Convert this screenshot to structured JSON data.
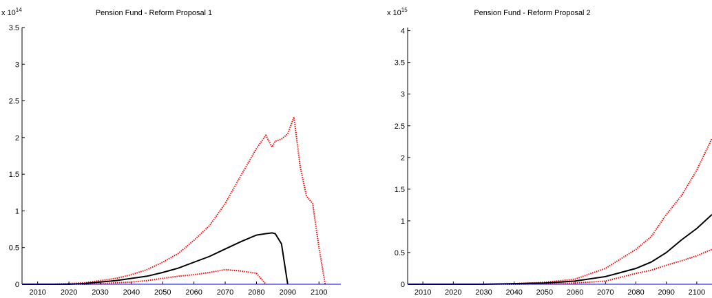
{
  "chart_data": [
    {
      "type": "line",
      "title": "Pension Fund - Reform Proposal 1",
      "y_scale_label": "x 10",
      "y_scale_exponent": "14",
      "x": [
        2005,
        2010,
        2015,
        2020,
        2025,
        2030,
        2035,
        2040,
        2045,
        2050,
        2055,
        2060,
        2065,
        2070,
        2075,
        2080,
        2083,
        2085,
        2086,
        2088,
        2090,
        2092,
        2094,
        2096,
        2098,
        2100,
        2102
      ],
      "xlim": [
        2005,
        2107
      ],
      "xticks": [
        2010,
        2020,
        2030,
        2040,
        2050,
        2060,
        2070,
        2080,
        2090,
        2100
      ],
      "ylim": [
        0,
        3.5
      ],
      "yticks": [
        0,
        0.5,
        1,
        1.5,
        2,
        2.5,
        3,
        3.5
      ],
      "series": [
        {
          "color": "#ff0000",
          "style": "dotted",
          "values": [
            0,
            0,
            0,
            0.01,
            0.02,
            0.05,
            0.08,
            0.13,
            0.2,
            0.3,
            0.42,
            0.6,
            0.8,
            1.1,
            1.48,
            1.85,
            2.03,
            1.87,
            1.95,
            1.98,
            2.05,
            2.28,
            1.6,
            1.2,
            1.1,
            0.5,
            0
          ]
        },
        {
          "color": "#ff0000",
          "style": "dotted",
          "values": [
            0,
            0,
            0,
            0,
            0,
            0.01,
            0.02,
            0.03,
            0.05,
            0.08,
            0.11,
            0.13,
            0.16,
            0.2,
            0.18,
            0.15,
            0,
            null,
            null,
            null,
            null,
            null,
            null,
            null,
            null,
            null,
            null
          ]
        },
        {
          "color": "#000000",
          "style": "solid",
          "values": [
            0,
            0,
            0,
            0,
            0.01,
            0.03,
            0.05,
            0.08,
            0.11,
            0.16,
            0.22,
            0.3,
            0.38,
            0.48,
            0.58,
            0.67,
            0.69,
            0.7,
            0.69,
            0.55,
            0,
            null,
            null,
            null,
            null,
            null,
            null
          ]
        }
      ]
    },
    {
      "type": "line",
      "title": "Pension Fund - Reform Proposal 2",
      "y_scale_label": "x 10",
      "y_scale_exponent": "15",
      "x": [
        2005,
        2010,
        2020,
        2030,
        2040,
        2050,
        2060,
        2070,
        2080,
        2085,
        2090,
        2095,
        2100,
        2105
      ],
      "xlim": [
        2005,
        2105
      ],
      "xticks": [
        2010,
        2020,
        2030,
        2040,
        2050,
        2060,
        2070,
        2080,
        2090,
        2100
      ],
      "ylim": [
        0,
        4.05
      ],
      "yticks": [
        0,
        0.5,
        1,
        1.5,
        2,
        2.5,
        3,
        3.5,
        4
      ],
      "series": [
        {
          "color": "#ff0000",
          "style": "dotted",
          "values": [
            0,
            0,
            0,
            0,
            0.01,
            0.03,
            0.08,
            0.25,
            0.55,
            0.75,
            1.1,
            1.4,
            1.8,
            2.3
          ]
        },
        {
          "color": "#ff0000",
          "style": "dotted",
          "values": [
            0,
            0,
            0,
            0,
            0,
            0.01,
            0.02,
            0.05,
            0.17,
            0.22,
            0.3,
            0.37,
            0.45,
            0.55
          ]
        },
        {
          "color": "#000000",
          "style": "solid",
          "values": [
            0,
            0,
            0,
            0,
            0.01,
            0.02,
            0.05,
            0.12,
            0.25,
            0.35,
            0.5,
            0.7,
            0.88,
            1.1
          ]
        }
      ]
    }
  ]
}
